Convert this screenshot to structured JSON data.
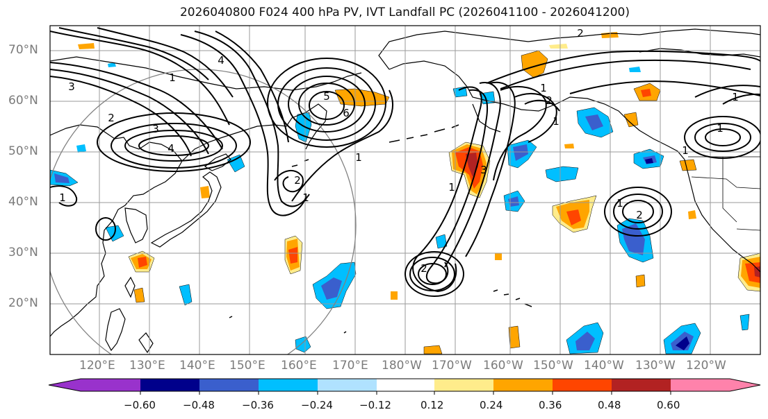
{
  "title": "2026040800 F024 400 hPa PV, IVT Landfall PC (2026041100 - 2026041200)",
  "lat_labels": [
    "70°N",
    "60°N",
    "50°N",
    "40°N",
    "30°N",
    "20°N"
  ],
  "lon_labels": [
    "120°E",
    "130°E",
    "140°E",
    "150°E",
    "160°E",
    "170°E",
    "180°W",
    "170°W",
    "160°W",
    "150°W",
    "140°W",
    "130°W",
    "120°W"
  ],
  "colorbar": {
    "ticks": [
      "−0.60",
      "−0.48",
      "−0.36",
      "−0.24",
      "−0.12",
      "0.12",
      "0.24",
      "0.36",
      "0.48",
      "0.60"
    ],
    "colors": [
      "#9932cc",
      "#00008b",
      "#3a5fcd",
      "#00bfff",
      "#b0e2ff",
      "#ffffff",
      "#ffec8b",
      "#ffa500",
      "#ff4500",
      "#b22222",
      "#ff82ab"
    ]
  },
  "contour_labels": [
    "4",
    "3",
    "2",
    "1",
    "1",
    "6",
    "5",
    "4",
    "3",
    "2",
    "1",
    "1",
    "2",
    "1",
    "3",
    "2",
    "1",
    "1",
    "2",
    "1",
    "1",
    "2",
    "1",
    "1"
  ]
}
